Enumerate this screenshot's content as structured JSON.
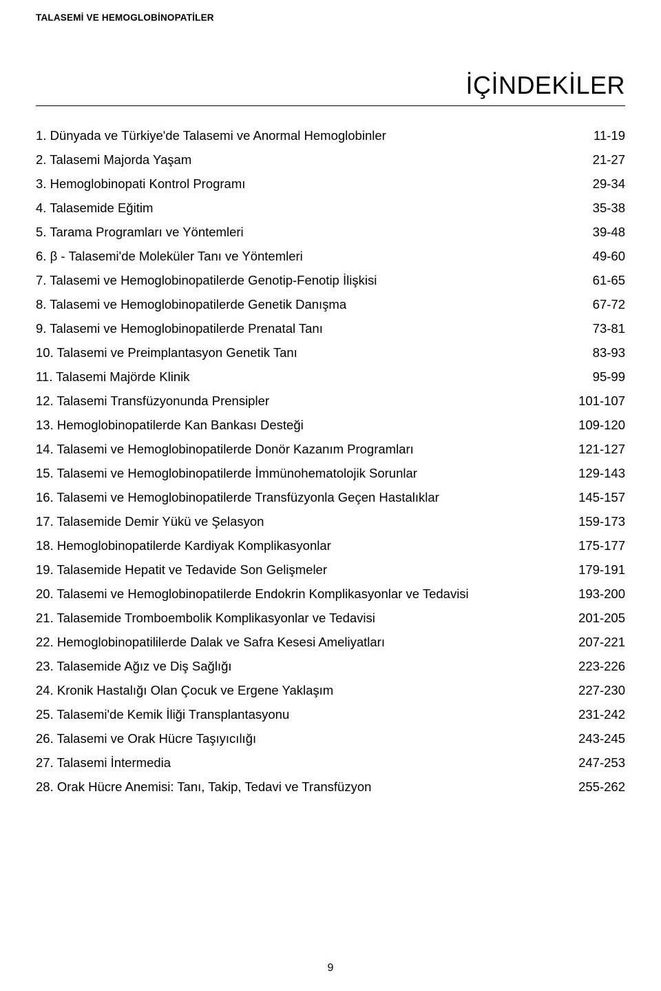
{
  "running_head": "TALASEMİ VE HEMOGLOBİNOPATİLER",
  "title": "İÇİNDEKİLER",
  "page_number": "9",
  "toc": [
    {
      "num": "1.",
      "label": "Dünyada  ve Türkiye'de Talasemi ve Anormal Hemoglobinler",
      "pages": "11-19"
    },
    {
      "num": "2.",
      "label": "Talasemi Majorda Yaşam",
      "pages": "21-27"
    },
    {
      "num": "3.",
      "label": "Hemoglobinopati Kontrol Programı",
      "pages": "29-34"
    },
    {
      "num": "4.",
      "label": "Talasemide Eğitim",
      "pages": "35-38"
    },
    {
      "num": "5.",
      "label": "Tarama Programları ve Yöntemleri",
      "pages": "39-48"
    },
    {
      "num": "6.",
      "label": "β - Talasemi'de Moleküler Tanı ve Yöntemleri",
      "pages": "49-60"
    },
    {
      "num": "7.",
      "label": "Talasemi ve Hemoglobinopatilerde Genotip-Fenotip İlişkisi",
      "pages": "61-65"
    },
    {
      "num": "8.",
      "label": "Talasemi ve Hemoglobinopatilerde Genetik Danışma",
      "pages": "67-72"
    },
    {
      "num": "9.",
      "label": "Talasemi ve Hemoglobinopatilerde Prenatal Tanı",
      "pages": "73-81"
    },
    {
      "num": "10.",
      "label": "Talasemi ve Preimplantasyon Genetik Tanı",
      "pages": "83-93"
    },
    {
      "num": "11.",
      "label": "Talasemi Majörde Klinik",
      "pages": "95-99"
    },
    {
      "num": "12.",
      "label": "Talasemi Transfüzyonunda Prensipler",
      "pages": "101-107"
    },
    {
      "num": "13.",
      "label": "Hemoglobinopatilerde Kan Bankası Desteği",
      "pages": "109-120"
    },
    {
      "num": "14.",
      "label": "Talasemi ve Hemoglobinopatilerde Donör Kazanım Programları",
      "pages": "121-127"
    },
    {
      "num": "15.",
      "label": "Talasemi ve Hemoglobinopatilerde İmmünohematolojik Sorunlar",
      "pages": "129-143"
    },
    {
      "num": "16.",
      "label": "Talasemi ve Hemoglobinopatilerde Transfüzyonla Geçen Hastalıklar",
      "pages": "145-157"
    },
    {
      "num": "17.",
      "label": "Talasemide Demir Yükü ve Şelasyon",
      "pages": "159-173"
    },
    {
      "num": "18.",
      "label": "Hemoglobinopatilerde Kardiyak Komplikasyonlar",
      "pages": "175-177"
    },
    {
      "num": "19.",
      "label": "Talasemide Hepatit ve Tedavide Son Gelişmeler",
      "pages": "179-191"
    },
    {
      "num": "20.",
      "label": "Talasemi ve Hemoglobinopatilerde Endokrin Komplikasyonlar ve Tedavisi",
      "pages": "193-200"
    },
    {
      "num": "21.",
      "label": "Talasemide Tromboembolik Komplikasyonlar ve Tedavisi",
      "pages": "201-205"
    },
    {
      "num": "22.",
      "label": "Hemoglobinopatililerde Dalak ve Safra Kesesi Ameliyatları",
      "pages": "207-221"
    },
    {
      "num": "23.",
      "label": "Talasemide Ağız ve Diş Sağlığı",
      "pages": "223-226"
    },
    {
      "num": "24.",
      "label": "Kronik Hastalığı Olan Çocuk ve Ergene Yaklaşım",
      "pages": "227-230"
    },
    {
      "num": "25.",
      "label": "Talasemi'de Kemik İliği Transplantasyonu",
      "pages": "231-242"
    },
    {
      "num": "26.",
      "label": "Talasemi ve Orak Hücre Taşıyıcılığı",
      "pages": "243-245"
    },
    {
      "num": "27.",
      "label": "Talasemi İntermedia",
      "pages": "247-253"
    },
    {
      "num": "28.",
      "label": "Orak Hücre Anemisi: Tanı, Takip, Tedavi ve Transfüzyon",
      "pages": "255-262"
    }
  ]
}
